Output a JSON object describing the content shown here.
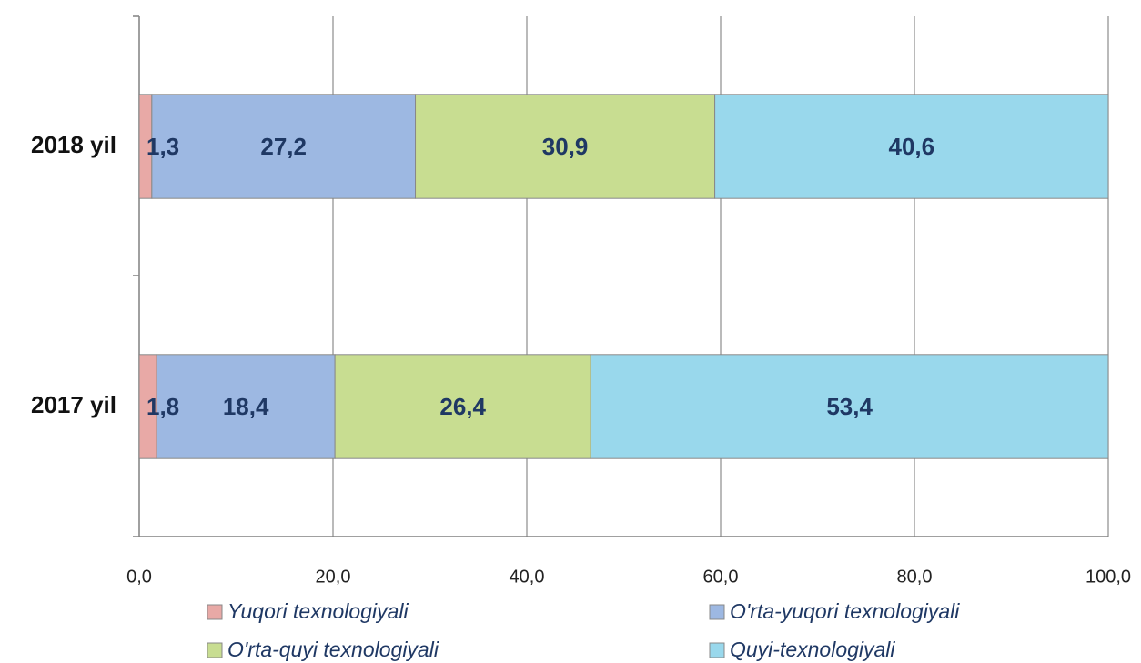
{
  "chart_data": {
    "type": "stacked-bar-horizontal",
    "categories": [
      "2018 yil",
      "2017 yil"
    ],
    "series": [
      {
        "name": "Yuqori texnologiyali",
        "color": "#e8a9a6",
        "values": [
          1.3,
          1.8
        ],
        "value_labels": [
          "1,3",
          "1,8"
        ]
      },
      {
        "name": "O'rta-yuqori texnologiyali",
        "color": "#9db8e2",
        "values": [
          27.2,
          18.4
        ],
        "value_labels": [
          "27,2",
          "18,4"
        ]
      },
      {
        "name": "O'rta-quyi texnologiyali",
        "color": "#c8dd91",
        "values": [
          30.9,
          26.4
        ],
        "value_labels": [
          "30,9",
          "26,4"
        ]
      },
      {
        "name": "Quyi-texnologiyali",
        "color": "#99d8ec",
        "values": [
          40.6,
          53.4
        ],
        "value_labels": [
          "40,6",
          "53,4"
        ]
      }
    ],
    "xlim": [
      0,
      100
    ],
    "xticks": [
      {
        "value": 0,
        "label": "0,0"
      },
      {
        "value": 20,
        "label": "20,0"
      },
      {
        "value": 40,
        "label": "40,0"
      },
      {
        "value": 60,
        "label": "60,0"
      },
      {
        "value": 80,
        "label": "80,0"
      },
      {
        "value": 100,
        "label": "100,0"
      }
    ],
    "grid": true
  }
}
